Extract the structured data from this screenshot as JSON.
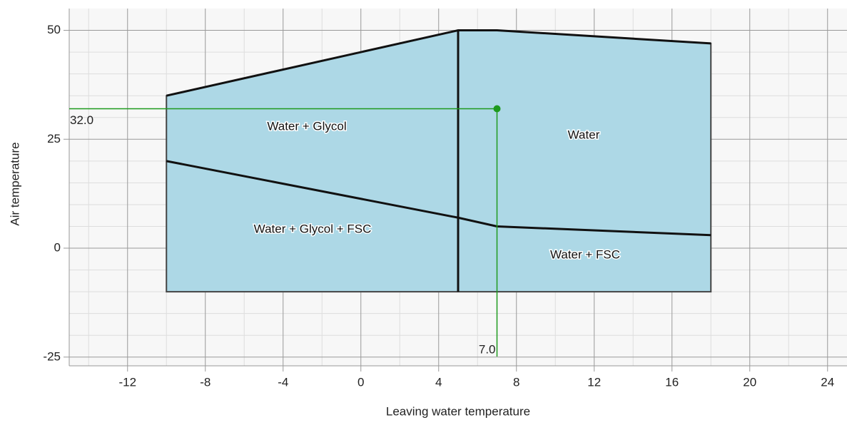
{
  "chart_data": {
    "type": "envelope",
    "xlabel": "Leaving water temperature",
    "ylabel": "Air temperature",
    "xlim": [
      -15,
      25
    ],
    "ylim": [
      -27,
      55
    ],
    "xticks": [
      -12,
      -8,
      -4,
      0,
      4,
      8,
      12,
      16,
      20,
      24
    ],
    "yticks": [
      -25,
      0,
      25,
      50
    ],
    "x_minor_ticks": [
      -14,
      -10,
      -6,
      -2,
      2,
      6,
      10,
      14,
      18,
      22
    ],
    "y_minor_ticks": [
      -20,
      -15,
      -10,
      -5,
      5,
      10,
      15,
      20,
      30,
      35,
      40,
      45
    ],
    "grid": true,
    "envelope": {
      "x": [
        -10,
        5,
        7,
        18,
        18,
        -10
      ],
      "y": [
        35,
        50,
        50,
        47,
        -10,
        -10
      ],
      "color": "#add8e6"
    },
    "dividers": [
      {
        "x": [
          5,
          5
        ],
        "y": [
          50,
          -10
        ]
      },
      {
        "x": [
          -10,
          5,
          7,
          18
        ],
        "y": [
          20,
          7,
          5,
          3
        ]
      }
    ],
    "regions": [
      "Water + Glycol",
      "Water",
      "Water + Glycol + FSC",
      "Water + FSC"
    ],
    "point": {
      "x": 7,
      "y": 32,
      "x_label": "7.0",
      "y_label": "32.0",
      "color": "#1e9a1e"
    }
  }
}
